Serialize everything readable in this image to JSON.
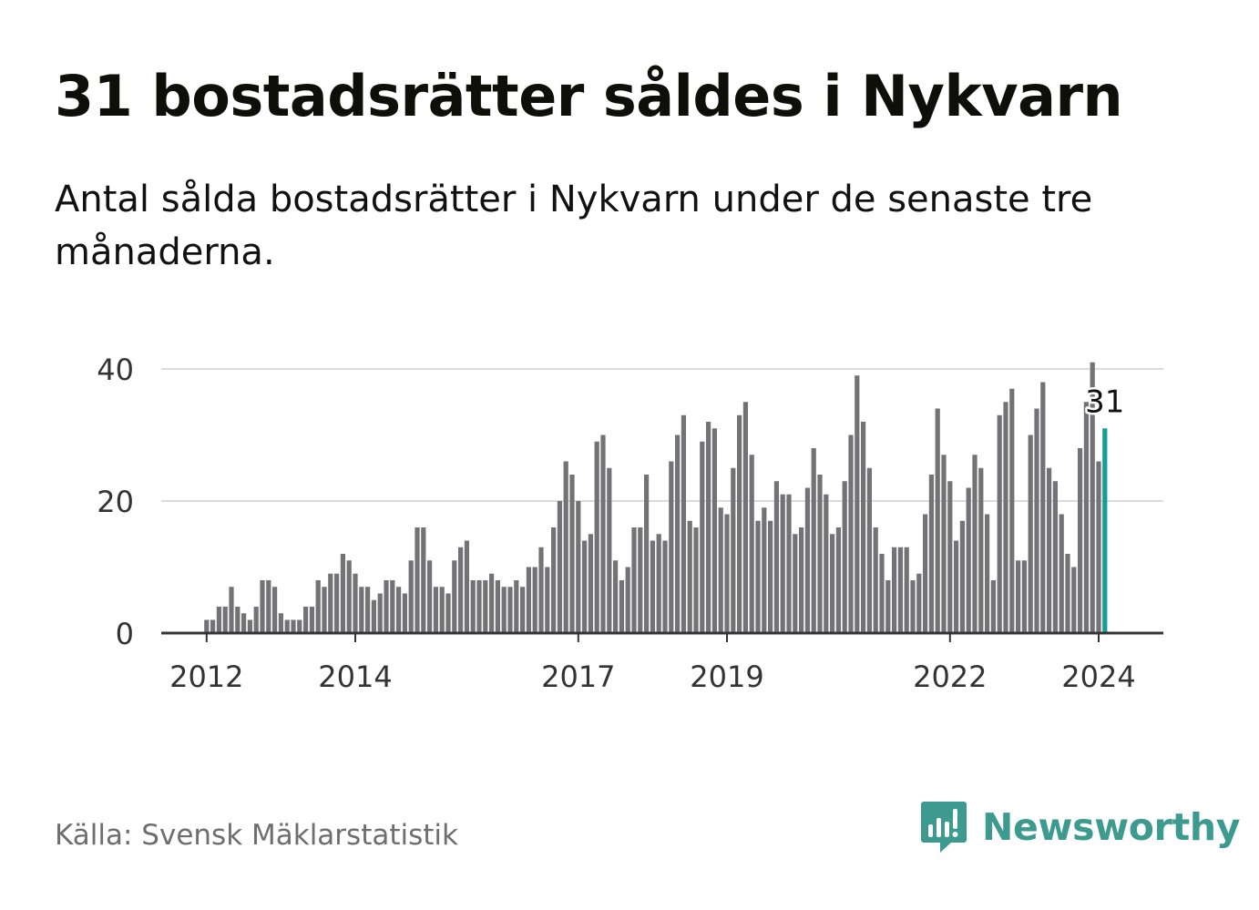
{
  "title": "31 bostadsrätter såldes i Nykvarn",
  "subtitle": "Antal sålda bostadsrätter i Nykvarn under de senaste tre månaderna.",
  "source": "Källa: Svensk Mäklarstatistik",
  "brand": {
    "name": "Newsworthy",
    "icon": "newsworthy-logo-icon",
    "color": "#3c9a8e"
  },
  "colors": {
    "bar": "#737276",
    "highlight": "#159f94",
    "grid": "#dcdcdc",
    "axis": "#333333"
  },
  "chart_data": {
    "type": "bar",
    "title": "31 bostadsrätter såldes i Nykvarn",
    "xlabel": "",
    "ylabel": "",
    "ylim": [
      0,
      40
    ],
    "yticks": [
      0,
      20,
      40
    ],
    "first_period": "2011-11",
    "last_period": "2024-01",
    "xticks": [
      {
        "label": "2012",
        "period": "2012-01"
      },
      {
        "label": "2014",
        "period": "2014-01"
      },
      {
        "label": "2017",
        "period": "2017-01"
      },
      {
        "label": "2019",
        "period": "2019-01"
      },
      {
        "label": "2022",
        "period": "2022-01"
      },
      {
        "label": "2024",
        "period": "2024-01"
      }
    ],
    "values": [
      0,
      0,
      2,
      2,
      4,
      4,
      7,
      4,
      3,
      2,
      4,
      8,
      8,
      7,
      3,
      2,
      2,
      2,
      4,
      4,
      8,
      7,
      9,
      9,
      12,
      11,
      9,
      7,
      7,
      5,
      6,
      8,
      8,
      7,
      6,
      11,
      16,
      16,
      11,
      7,
      7,
      6,
      11,
      13,
      14,
      8,
      8,
      8,
      9,
      8,
      7,
      7,
      8,
      7,
      10,
      10,
      13,
      10,
      16,
      20,
      26,
      24,
      20,
      14,
      15,
      29,
      30,
      25,
      11,
      8,
      10,
      16,
      16,
      24,
      14,
      15,
      14,
      26,
      30,
      33,
      17,
      16,
      29,
      32,
      31,
      19,
      18,
      25,
      33,
      35,
      27,
      17,
      19,
      17,
      23,
      21,
      21,
      15,
      16,
      22,
      28,
      24,
      21,
      15,
      16,
      23,
      30,
      39,
      32,
      25,
      16,
      12,
      8,
      13,
      13,
      13,
      8,
      9,
      18,
      24,
      34,
      27,
      23,
      14,
      17,
      22,
      27,
      25,
      18,
      8,
      33,
      35,
      37,
      11,
      11,
      30,
      34,
      38,
      25,
      23,
      18,
      12,
      10,
      28,
      35,
      41,
      26,
      31
    ],
    "highlight_label": "31"
  }
}
